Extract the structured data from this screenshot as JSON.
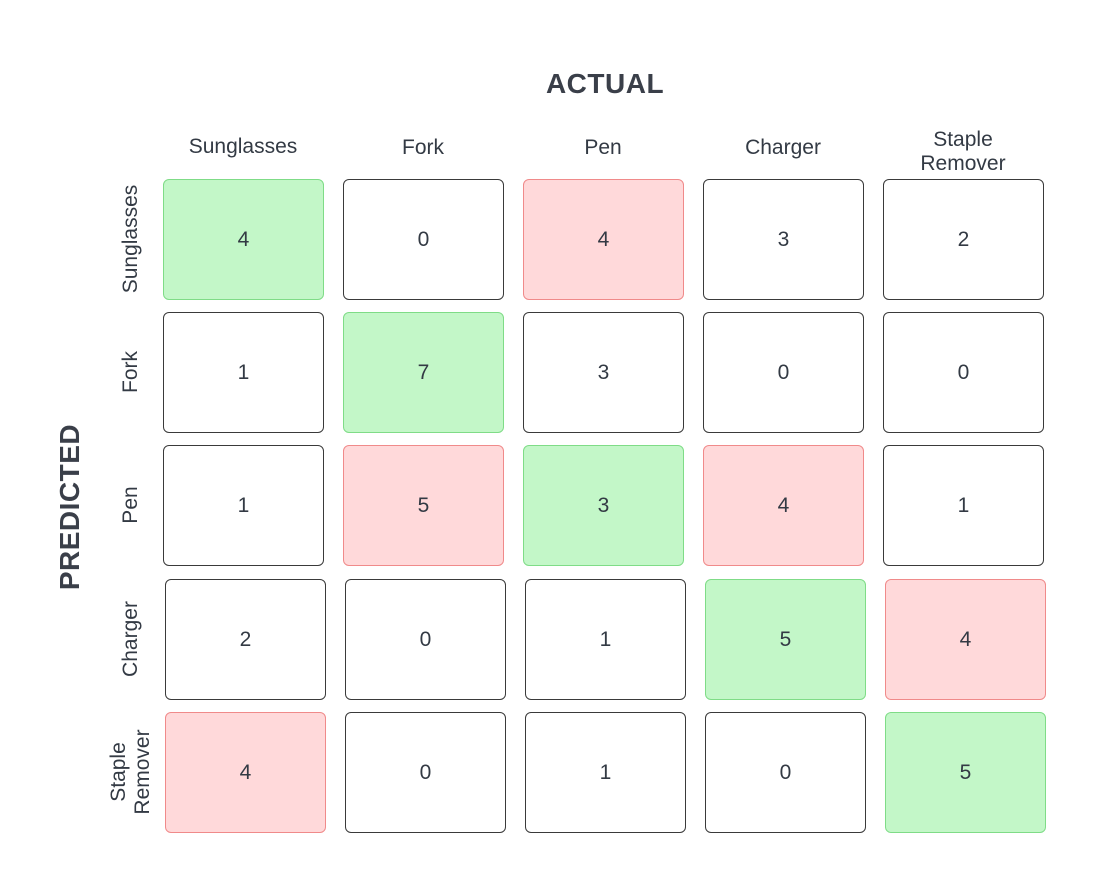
{
  "header": {
    "actual_label": "ACTUAL",
    "predicted_label": "PREDICTED"
  },
  "columns": [
    {
      "lines": [
        "Sunglasses"
      ]
    },
    {
      "lines": [
        "Fork"
      ]
    },
    {
      "lines": [
        "Pen"
      ]
    },
    {
      "lines": [
        "Charger"
      ]
    },
    {
      "lines": [
        "Staple",
        "Remover"
      ]
    }
  ],
  "rows": [
    {
      "lines": [
        "Sunglasses"
      ]
    },
    {
      "lines": [
        "Fork"
      ]
    },
    {
      "lines": [
        "Pen"
      ]
    },
    {
      "lines": [
        "Charger"
      ]
    },
    {
      "lines": [
        "Staple",
        "Remover"
      ]
    }
  ],
  "matrix": [
    [
      4,
      0,
      4,
      3,
      2
    ],
    [
      1,
      7,
      3,
      0,
      0
    ],
    [
      1,
      5,
      3,
      4,
      1
    ],
    [
      2,
      0,
      1,
      5,
      4
    ],
    [
      4,
      0,
      1,
      0,
      5
    ]
  ],
  "highlight": {
    "correct_color": "#c3f7c8",
    "error_color": "#ffd9da",
    "error_cells": [
      [
        0,
        2
      ],
      [
        2,
        1
      ],
      [
        2,
        3
      ],
      [
        3,
        4
      ],
      [
        4,
        0
      ]
    ]
  }
}
